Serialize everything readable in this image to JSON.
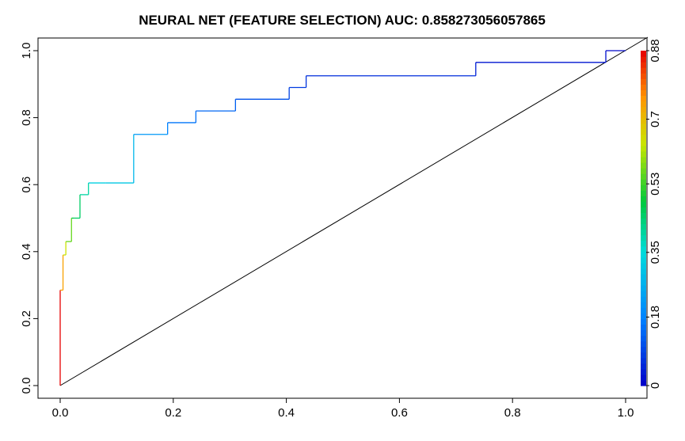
{
  "chart_data": {
    "type": "line",
    "title": "NEURAL NET (FEATURE SELECTION) AUC: 0.858273056057865",
    "xlabel": "",
    "ylabel": "",
    "xlim": [
      0,
      1
    ],
    "ylim": [
      0,
      1
    ],
    "x_ticks": [
      "0.0",
      "0.2",
      "0.4",
      "0.6",
      "0.8",
      "1.0"
    ],
    "y_ticks": [
      "0.0",
      "0.2",
      "0.4",
      "0.6",
      "0.8",
      "1.0"
    ],
    "grid": false,
    "legend": "colorbar-right",
    "series": [
      {
        "role": "roc-curve",
        "color_mapped": true,
        "x": [
          0.0,
          0.0,
          0.005,
          0.005,
          0.01,
          0.01,
          0.02,
          0.02,
          0.025,
          0.025,
          0.035,
          0.035,
          0.05,
          0.05,
          0.08,
          0.13,
          0.13,
          0.19,
          0.19,
          0.24,
          0.24,
          0.31,
          0.31,
          0.405,
          0.405,
          0.435,
          0.435,
          0.735,
          0.735,
          0.965,
          0.965,
          1.0
        ],
        "y": [
          0.0,
          0.285,
          0.285,
          0.39,
          0.39,
          0.43,
          0.43,
          0.5,
          0.5,
          0.5,
          0.5,
          0.57,
          0.57,
          0.605,
          0.605,
          0.605,
          0.75,
          0.75,
          0.785,
          0.785,
          0.82,
          0.82,
          0.855,
          0.855,
          0.89,
          0.89,
          0.925,
          0.925,
          0.965,
          0.965,
          1.0,
          1.0
        ],
        "threshold": [
          0.88,
          0.74,
          0.74,
          0.64,
          0.64,
          0.56,
          0.56,
          0.48,
          0.48,
          0.45,
          0.45,
          0.4,
          0.4,
          0.33,
          0.31,
          0.28,
          0.22,
          0.18,
          0.16,
          0.15,
          0.14,
          0.13,
          0.11,
          0.09,
          0.08,
          0.07,
          0.06,
          0.04,
          0.03,
          0.02,
          0.01,
          0.0
        ]
      },
      {
        "role": "diagonal",
        "color": "#000000",
        "x": [
          0,
          1
        ],
        "y": [
          0,
          1
        ]
      }
    ],
    "colorbar": {
      "range": [
        0,
        0.88
      ],
      "tick_values": [
        0,
        0.18,
        0.35,
        0.53,
        0.7,
        0.88
      ],
      "tick_labels": [
        "0",
        "0.18",
        "0.35",
        "0.53",
        "0.7",
        "0.88"
      ]
    }
  }
}
